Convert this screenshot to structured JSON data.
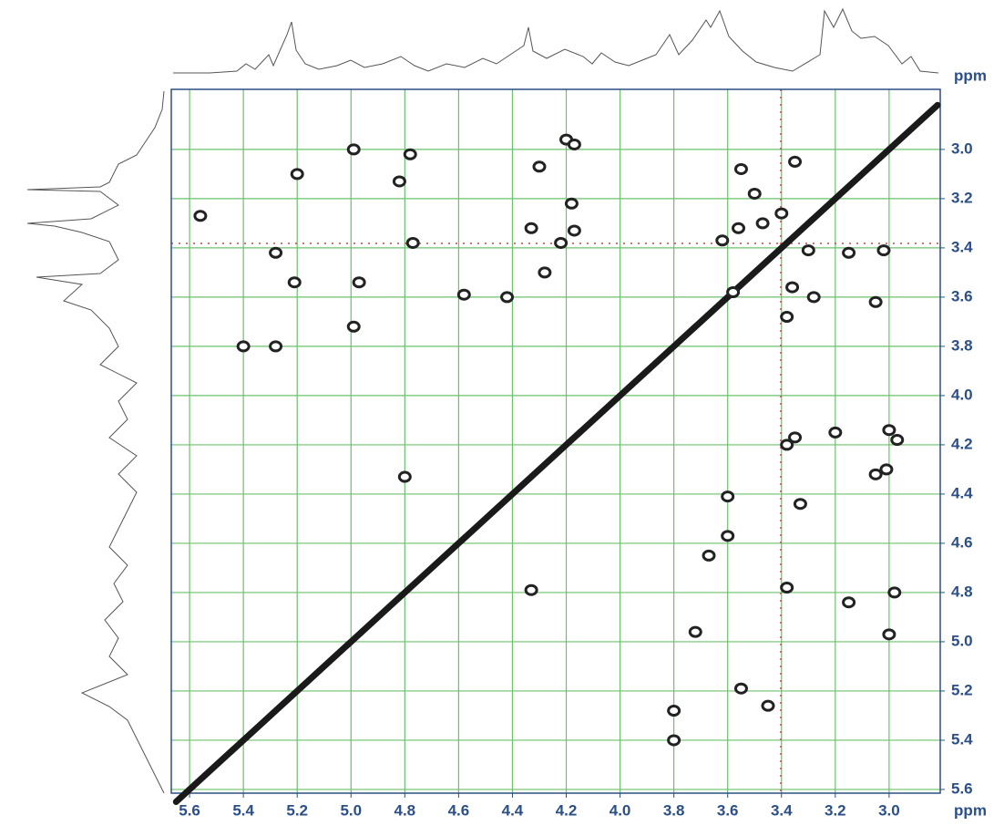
{
  "chart_data": {
    "type": "contour",
    "x_label": "ppm",
    "y_label": "ppm",
    "xlim": [
      5.668,
      2.81
    ],
    "ylim": [
      2.756,
      5.615
    ],
    "xticks": [
      5.6,
      5.4,
      5.2,
      {
        "value": 5.0,
        "label": "5.0"
      },
      4.8,
      4.6,
      4.4,
      4.2,
      {
        "value": 4.0,
        "label": "4.0"
      },
      3.8,
      3.6,
      3.4,
      3.2,
      {
        "value": 3.0,
        "label": "3.0"
      }
    ],
    "yticks": [
      {
        "value": 3.0,
        "label": "3.0"
      },
      3.2,
      3.4,
      3.6,
      3.8,
      {
        "value": 4.0,
        "label": "4.0"
      },
      4.2,
      4.4,
      4.6,
      4.8,
      {
        "value": 5.0,
        "label": "5.0"
      },
      5.2,
      5.4,
      5.6
    ],
    "grid": true,
    "grid_color": "#6cc06c",
    "series": [
      {
        "color": "#222222",
        "x": [
          5.56,
          5.4,
          5.28,
          5.28,
          5.21,
          5.2,
          4.99,
          4.97,
          4.99,
          4.82,
          4.78,
          4.77,
          4.8,
          4.58,
          4.42,
          4.33,
          4.33,
          4.3,
          4.2,
          4.17,
          4.22,
          4.17,
          4.18,
          4.28,
          3.8,
          3.8,
          3.72,
          3.55,
          3.45,
          3.62,
          3.56,
          3.47,
          3.58,
          3.38,
          3.38,
          3.35,
          3.33,
          3.2,
          3.05,
          3.01,
          2.97,
          3.0,
          2.98,
          3.15,
          3.0,
          3.36,
          3.28,
          3.38,
          3.3,
          3.15,
          3.02,
          3.4,
          3.5,
          3.55,
          3.35,
          3.05,
          3.6,
          3.6,
          3.67
        ],
        "y": [
          3.27,
          3.8,
          3.8,
          3.42,
          3.54,
          3.1,
          3.0,
          3.54,
          3.72,
          3.13,
          3.02,
          3.38,
          4.33,
          3.59,
          3.6,
          3.32,
          4.79,
          3.07,
          2.96,
          2.98,
          3.38,
          3.33,
          3.22,
          3.5,
          5.28,
          5.4,
          4.96,
          5.19,
          5.26,
          3.37,
          3.32,
          3.3,
          3.58,
          4.78,
          4.2,
          4.17,
          4.44,
          4.15,
          4.32,
          4.3,
          4.18,
          4.14,
          4.8,
          4.84,
          4.97,
          3.56,
          3.6,
          3.68,
          3.41,
          3.42,
          3.41,
          3.26,
          3.18,
          3.08,
          3.05,
          3.62,
          4.41,
          4.57,
          4.65
        ]
      },
      {
        "color": "#1a1a1a",
        "x": [
          5.65,
          2.82
        ],
        "y": [
          5.65,
          2.82
        ]
      }
    ]
  }
}
